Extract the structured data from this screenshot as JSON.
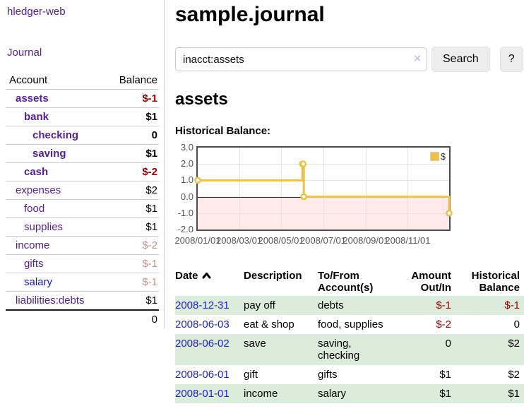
{
  "sidebar": {
    "brand": "hledger-web",
    "journal_label": "Journal",
    "table": {
      "account_header": "Account",
      "balance_header": "Balance",
      "rows": [
        {
          "name": "assets",
          "balance": "$-1",
          "indent": "lvl1",
          "name_cls": "bold",
          "bal_cls": "bold neg"
        },
        {
          "name": "bank",
          "balance": "$1",
          "indent": "lvl2",
          "name_cls": "bold",
          "bal_cls": "bold"
        },
        {
          "name": "checking",
          "balance": "0",
          "indent": "lvl3",
          "name_cls": "bold",
          "bal_cls": "bold"
        },
        {
          "name": "saving",
          "balance": "$1",
          "indent": "lvl3",
          "name_cls": "bold",
          "bal_cls": "bold"
        },
        {
          "name": "cash",
          "balance": "$-2",
          "indent": "lvl2",
          "name_cls": "bold",
          "bal_cls": "bold neg"
        },
        {
          "name": "expenses",
          "balance": "$2",
          "indent": "lvl1",
          "name_cls": "",
          "bal_cls": ""
        },
        {
          "name": "food",
          "balance": "$1",
          "indent": "lvl2",
          "name_cls": "",
          "bal_cls": ""
        },
        {
          "name": "supplies",
          "balance": "$1",
          "indent": "lvl2",
          "name_cls": "",
          "bal_cls": ""
        },
        {
          "name": "income",
          "balance": "$-2",
          "indent": "lvl1",
          "name_cls": "",
          "bal_cls": "dim"
        },
        {
          "name": "gifts",
          "balance": "$-1",
          "indent": "lvl2",
          "name_cls": "",
          "bal_cls": "dim"
        },
        {
          "name": "salary",
          "balance": "$-1",
          "indent": "lvl2",
          "name_cls": "blue",
          "bal_cls": "dim"
        },
        {
          "name": "liabilities:debts",
          "balance": "$1",
          "indent": "lvl1",
          "name_cls": "",
          "bal_cls": ""
        }
      ],
      "total": "0"
    }
  },
  "header": {
    "title": "sample.journal"
  },
  "search": {
    "query": "inacct:assets",
    "clear_icon": "×",
    "button_label": "Search",
    "help_label": "?"
  },
  "account_page": {
    "heading": "assets",
    "chart_label": "Historical Balance:"
  },
  "chart_data": {
    "type": "line",
    "title": "Historical Balance",
    "step": true,
    "series": [
      {
        "name": "$",
        "color": "#EDC240",
        "points": [
          [
            "2008-01-01",
            1
          ],
          [
            "2008-06-01",
            2
          ],
          [
            "2008-06-02",
            2
          ],
          [
            "2008-06-03",
            0
          ],
          [
            "2008-12-31",
            -1
          ]
        ]
      }
    ],
    "x_range": [
      "2008-01-01",
      "2008-12-31"
    ],
    "x_ticks": [
      {
        "date": "2008-01-01",
        "label": "2008/01/01"
      },
      {
        "date": "2008-03-01",
        "label": "2008/03/01"
      },
      {
        "date": "2008-05-01",
        "label": "2008/05/01"
      },
      {
        "date": "2008-07-01",
        "label": "2008/07/01"
      },
      {
        "date": "2008-09-01",
        "label": "2008/09/01"
      },
      {
        "date": "2008-11-01",
        "label": "2008/11/01"
      }
    ],
    "y_ticks": [
      3.0,
      2.0,
      1.0,
      0.0,
      -1.0,
      -2.0
    ],
    "ylim": [
      -2,
      3
    ],
    "grid": true,
    "negative_region_color": "#ffd9d9",
    "zero_line_color": "#8b0000",
    "legend": {
      "label": "$",
      "position": "top-right"
    }
  },
  "register": {
    "headers": {
      "date": "Date",
      "description": "Description",
      "accounts": "To/From Account(s)",
      "amount": "Amount Out/In",
      "balance": "Historical Balance"
    },
    "rows": [
      {
        "date": "2008-12-31",
        "description": "pay off",
        "accounts": "debts",
        "amount": "$-1",
        "amount_cls": "neg",
        "balance": "$-1",
        "balance_cls": "neg"
      },
      {
        "date": "2008-06-03",
        "description": "eat & shop",
        "accounts": "food, supplies",
        "amount": "$-2",
        "amount_cls": "neg",
        "balance": "0",
        "balance_cls": ""
      },
      {
        "date": "2008-06-02",
        "description": "save",
        "accounts": "saving, checking",
        "amount": "0",
        "amount_cls": "",
        "balance": "$2",
        "balance_cls": ""
      },
      {
        "date": "2008-06-01",
        "description": "gift",
        "accounts": "gifts",
        "amount": "$1",
        "amount_cls": "",
        "balance": "$2",
        "balance_cls": ""
      },
      {
        "date": "2008-01-01",
        "description": "income",
        "accounts": "salary",
        "amount": "$1",
        "amount_cls": "",
        "balance": "$1",
        "balance_cls": ""
      }
    ]
  },
  "icons": {
    "search_clear": "close-icon",
    "date_sort": "chevron-up-icon"
  }
}
